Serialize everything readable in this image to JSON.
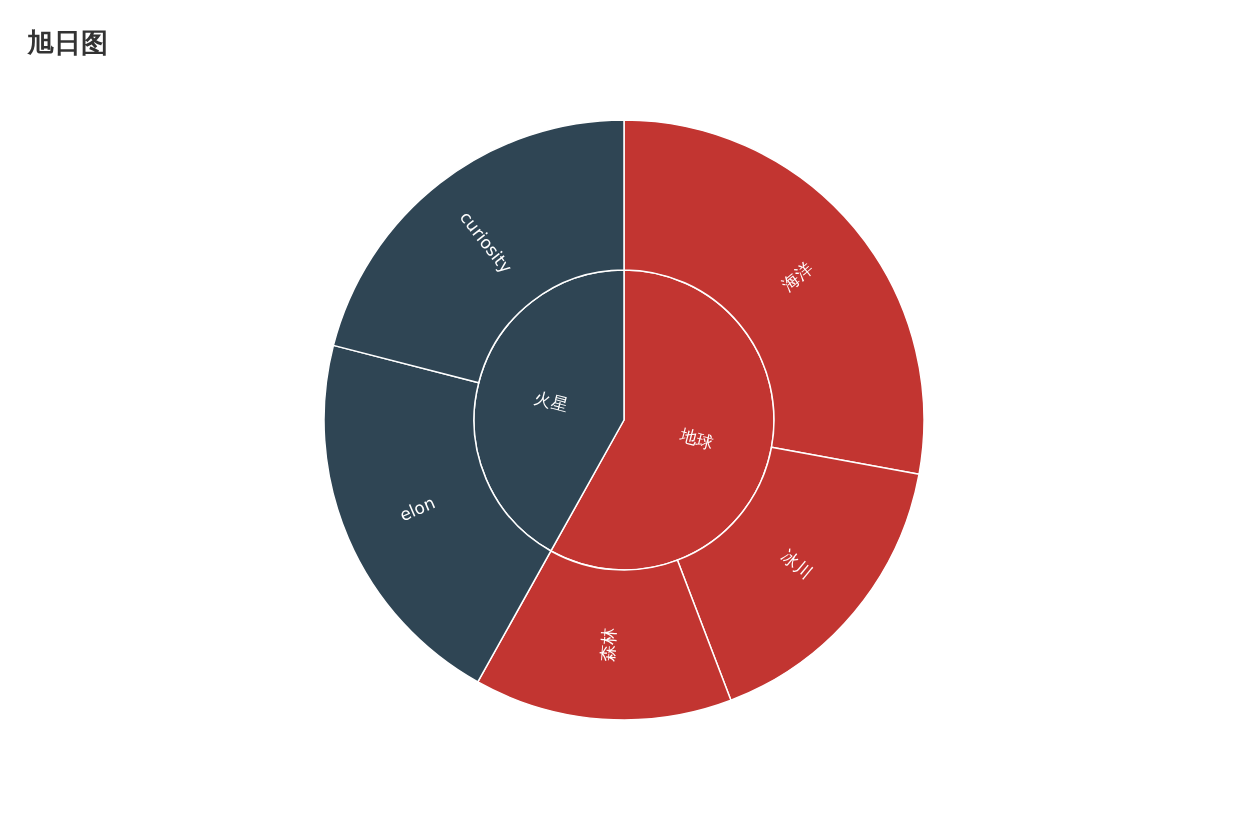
{
  "chart_data": [
    {
      "type": "pie",
      "title": "旭日图",
      "categories": [
        "地球",
        "火星"
      ],
      "values": [
        58.1,
        41.9
      ],
      "colors": [
        "#c23531",
        "#2f4554"
      ]
    },
    {
      "type": "donut",
      "categories": [
        "海洋",
        "冰川",
        "森林",
        "elon",
        "curiosity"
      ],
      "values": [
        27.9,
        16.3,
        13.9,
        20.9,
        21.0
      ],
      "colors": [
        "#c23531",
        "#c23531",
        "#c23531",
        "#2f4554",
        "#2f4554"
      ]
    }
  ]
}
